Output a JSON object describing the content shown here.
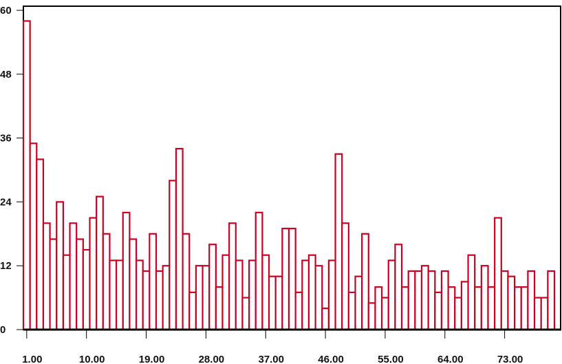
{
  "chart_data": {
    "type": "bar",
    "title": "",
    "xlabel": "",
    "ylabel": "",
    "x": [
      1,
      2,
      3,
      4,
      5,
      6,
      7,
      8,
      9,
      10,
      11,
      12,
      13,
      14,
      15,
      16,
      17,
      18,
      19,
      20,
      21,
      22,
      23,
      24,
      25,
      26,
      27,
      28,
      29,
      30,
      31,
      32,
      33,
      34,
      35,
      36,
      37,
      38,
      39,
      40,
      41,
      42,
      43,
      44,
      45,
      46,
      47,
      48,
      49,
      50,
      51,
      52,
      53,
      54,
      55,
      56,
      57,
      58,
      59,
      60,
      61,
      62,
      63,
      64,
      65,
      66,
      67,
      68,
      69,
      70,
      71,
      72,
      73,
      74,
      75,
      76,
      77,
      78,
      79,
      80
    ],
    "values": [
      58,
      35,
      32,
      20,
      17,
      24,
      14,
      20,
      17,
      15,
      21,
      25,
      18,
      13,
      13,
      22,
      17,
      13,
      11,
      18,
      11,
      12,
      28,
      34,
      18,
      7,
      12,
      12,
      16,
      8,
      14,
      20,
      13,
      6,
      13,
      22,
      14,
      10,
      10,
      19,
      19,
      7,
      13,
      14,
      12,
      4,
      13,
      33,
      20,
      7,
      10,
      18,
      5,
      8,
      6,
      13,
      16,
      8,
      11,
      11,
      12,
      11,
      7,
      11,
      8,
      6,
      9,
      14,
      8,
      12,
      8,
      21,
      11,
      10,
      8,
      8,
      11,
      6,
      6,
      11
    ],
    "ylim": [
      0,
      60
    ],
    "xlim": [
      0.5,
      80.5
    ],
    "yticks": [
      "0",
      "12",
      "24",
      "36",
      "48",
      "60"
    ],
    "xticks": [
      "1.00",
      "10.00",
      "19.00",
      "28.00",
      "37.00",
      "46.00",
      "55.00",
      "64.00",
      "73.00"
    ],
    "grid": false,
    "legend": "none",
    "bar_edge_color": "#cc0022",
    "bar_fill_color": "#ffffff"
  }
}
